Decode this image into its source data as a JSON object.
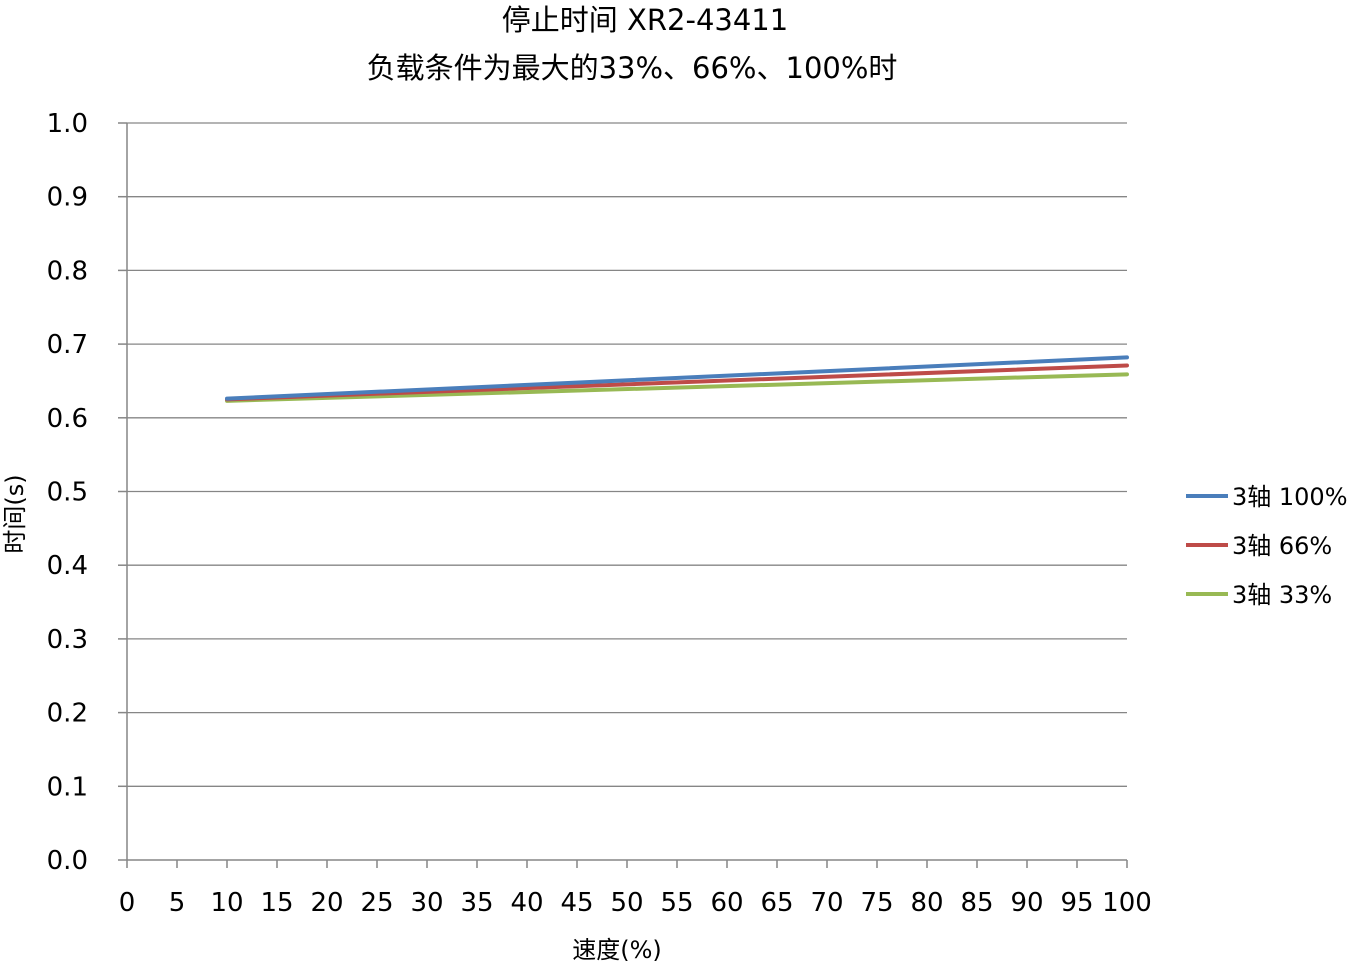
{
  "chart_data": {
    "type": "line",
    "title": "停止时间 XR2-43411",
    "subtitle": "负载条件为最大的33%、66%、100%时",
    "xlabel": "速度(%)",
    "ylabel": "时间(s)",
    "xlim": [
      0,
      100
    ],
    "ylim": [
      0,
      1.0
    ],
    "x_ticks": [
      "0",
      "5",
      "10",
      "15",
      "20",
      "25",
      "30",
      "35",
      "40",
      "45",
      "50",
      "55",
      "60",
      "65",
      "70",
      "75",
      "80",
      "85",
      "90",
      "95",
      "100"
    ],
    "y_ticks": [
      "0.0",
      "0.1",
      "0.2",
      "0.3",
      "0.4",
      "0.5",
      "0.6",
      "0.7",
      "0.8",
      "0.9",
      "1.0"
    ],
    "grid": "horizontal",
    "legend_position": "right",
    "series": [
      {
        "name": "3轴 100%",
        "color": "#4a7ebb",
        "x": [
          10,
          100
        ],
        "y": [
          0.626,
          0.682
        ]
      },
      {
        "name": "3轴 66%",
        "color": "#be4b48",
        "x": [
          10,
          100
        ],
        "y": [
          0.625,
          0.671
        ]
      },
      {
        "name": "3轴 33%",
        "color": "#98b954",
        "x": [
          10,
          100
        ],
        "y": [
          0.623,
          0.659
        ]
      }
    ]
  }
}
